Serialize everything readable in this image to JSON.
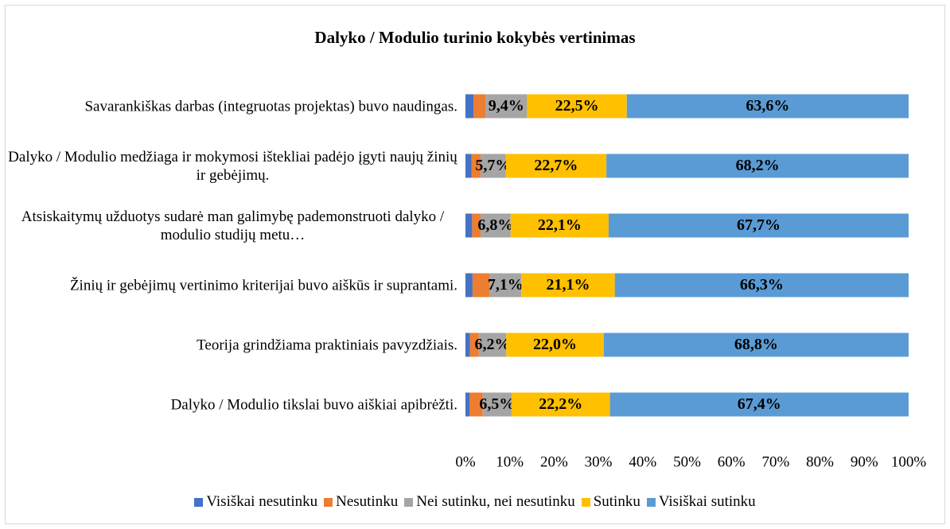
{
  "chart_data": {
    "type": "stacked_bar_horizontal",
    "title": "Dalyko / Modulio turinio kokybės vertinimas",
    "categories": [
      "Savarankiškas darbas (integruotas projektas) buvo naudingas.",
      "Dalyko / Modulio medžiaga ir mokymosi ištekliai padėjo įgyti naujų žinių ir gebėjimų.",
      "Atsiskaitymų užduotys sudarė man galimybę pademonstruoti dalyko / modulio studijų metu…",
      "Žinių ir gebėjimų vertinimo kriterijai buvo aiškūs ir suprantami.",
      "Teorija grindžiama praktiniais pavyzdžiais.",
      "Dalyko / Modulio tikslai buvo aiškiai apibrėžti."
    ],
    "series": [
      {
        "name": "Visiškai nesutinku",
        "color": "#4472c4",
        "values": [
          1.8,
          1.4,
          1.5,
          1.6,
          1.0,
          0.9
        ]
      },
      {
        "name": "Nesutinku",
        "color": "#ed7d31",
        "values": [
          2.7,
          2.0,
          1.9,
          3.9,
          2.0,
          3.0
        ]
      },
      {
        "name": "Nei sutinku, nei nesutinku",
        "color": "#a5a5a5",
        "values": [
          9.4,
          5.7,
          6.8,
          7.1,
          6.2,
          6.5
        ],
        "value_labels": [
          "9,4%",
          "5,7%",
          "6,8%",
          "7,1%",
          "6,2%",
          "6,5%"
        ]
      },
      {
        "name": "Sutinku",
        "color": "#ffc000",
        "values": [
          22.5,
          22.7,
          22.1,
          21.1,
          22.0,
          22.2
        ],
        "value_labels": [
          "22,5%",
          "22,7%",
          "22,1%",
          "21,1%",
          "22,0%",
          "22,2%"
        ]
      },
      {
        "name": "Visiškai sutinku",
        "color": "#5b9bd5",
        "values": [
          63.6,
          68.2,
          67.7,
          66.3,
          68.8,
          67.4
        ],
        "value_labels": [
          "63,6%",
          "68,2%",
          "67,7%",
          "66,3%",
          "68,8%",
          "67,4%"
        ]
      }
    ],
    "xlim": [
      0,
      100
    ],
    "xticks": [
      {
        "value": 0,
        "label": "0%"
      },
      {
        "value": 10,
        "label": "10%"
      },
      {
        "value": 20,
        "label": "20%"
      },
      {
        "value": 30,
        "label": "30%"
      },
      {
        "value": 40,
        "label": "40%"
      },
      {
        "value": 50,
        "label": "50%"
      },
      {
        "value": 60,
        "label": "60%"
      },
      {
        "value": 70,
        "label": "70%"
      },
      {
        "value": 80,
        "label": "80%"
      },
      {
        "value": 90,
        "label": "90%"
      },
      {
        "value": 100,
        "label": "100%"
      }
    ],
    "legend": "bottom"
  }
}
